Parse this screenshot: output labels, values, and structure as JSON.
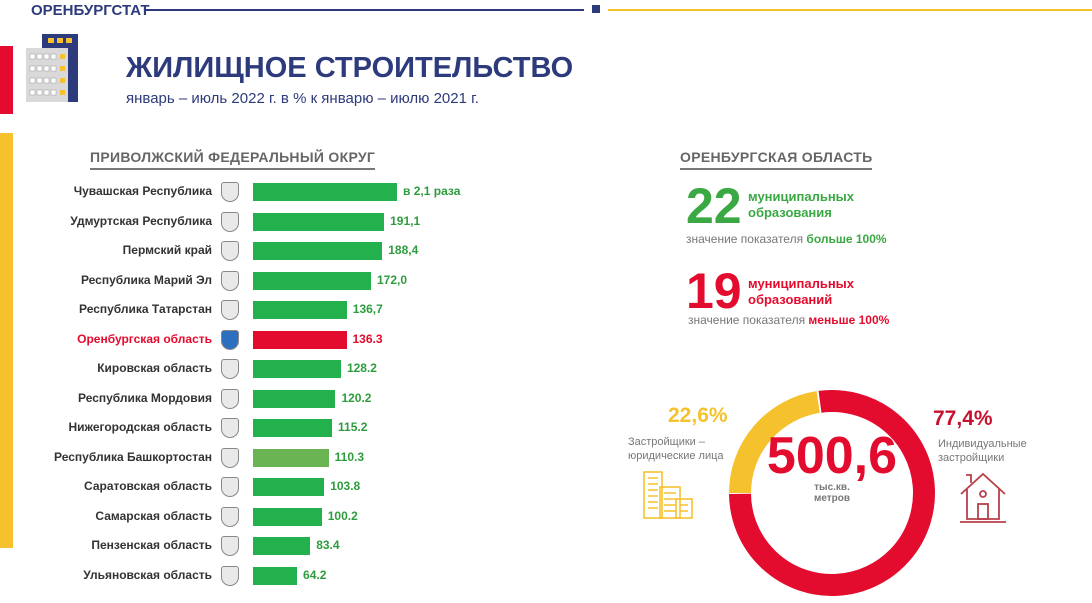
{
  "header": {
    "brand": "ОРЕНБУРГСТАТ",
    "title": "ЖИЛИЩНОЕ СТРОИТЕЛЬСТВО",
    "subtitle": "январь – июль 2022 г. в % к январю – июлю 2021 г."
  },
  "colors": {
    "navy": "#2d3a7c",
    "red": "#e30b2e",
    "green": "#22b14c",
    "yellow": "#f5c22d",
    "gray": "#777777"
  },
  "left": {
    "heading": "ПРИВОЛЖСКИЙ ФЕДЕРАЛЬНЫЙ ОКРУГ",
    "chart_data": {
      "type": "bar",
      "unit": "% к январю – июлю 2021 г.",
      "rows": [
        {
          "name": "Чувашская Республика",
          "value": 210,
          "label": "в 2,1 раза"
        },
        {
          "name": "Удмуртская Республика",
          "value": 191.1,
          "label": "191,1"
        },
        {
          "name": "Пермский край",
          "value": 188.4,
          "label": "188,4"
        },
        {
          "name": "Республика Марий Эл",
          "value": 172.0,
          "label": "172,0"
        },
        {
          "name": "Республика Татарстан",
          "value": 136.7,
          "label": "136,7"
        },
        {
          "name": "Оренбургская область",
          "value": 136.3,
          "label": "136.3",
          "highlight": true
        },
        {
          "name": "Кировская область",
          "value": 128.2,
          "label": "128.2"
        },
        {
          "name": "Республика Мордовия",
          "value": 120.2,
          "label": "120.2"
        },
        {
          "name": "Нижегородская область",
          "value": 115.2,
          "label": "115.2"
        },
        {
          "name": "Республика Башкортостан",
          "value": 110.3,
          "label": "110.3",
          "light": true
        },
        {
          "name": "Саратовская область",
          "value": 103.8,
          "label": "103.8"
        },
        {
          "name": "Самарская область",
          "value": 100.2,
          "label": "100.2"
        },
        {
          "name": "Пензенская область",
          "value": 83.4,
          "label": "83.4"
        },
        {
          "name": "Ульяновская область",
          "value": 64.2,
          "label": "64.2"
        }
      ]
    }
  },
  "right": {
    "heading": "ОРЕНБУРГСКАЯ ОБЛАСТЬ",
    "more": {
      "count": "22",
      "text1": "муниципальных",
      "text2": "образования",
      "note": "значение показателя ",
      "note_b": "больше 100%"
    },
    "less": {
      "count": "19",
      "text1": "муниципальных",
      "text2": "образований",
      "note": "значение показателя ",
      "note_b": "меньше 100%"
    },
    "donut": {
      "total": "500,6",
      "unit1": "тыс.кв.",
      "unit2": "метров",
      "legal": {
        "pct": "22,6%",
        "value": 22.6,
        "label1": "Застройщики –",
        "label2": "юридические лица"
      },
      "individual": {
        "pct": "77,4%",
        "value": 77.4,
        "label1": "Индивидуальные",
        "label2": "застройщики"
      }
    }
  }
}
